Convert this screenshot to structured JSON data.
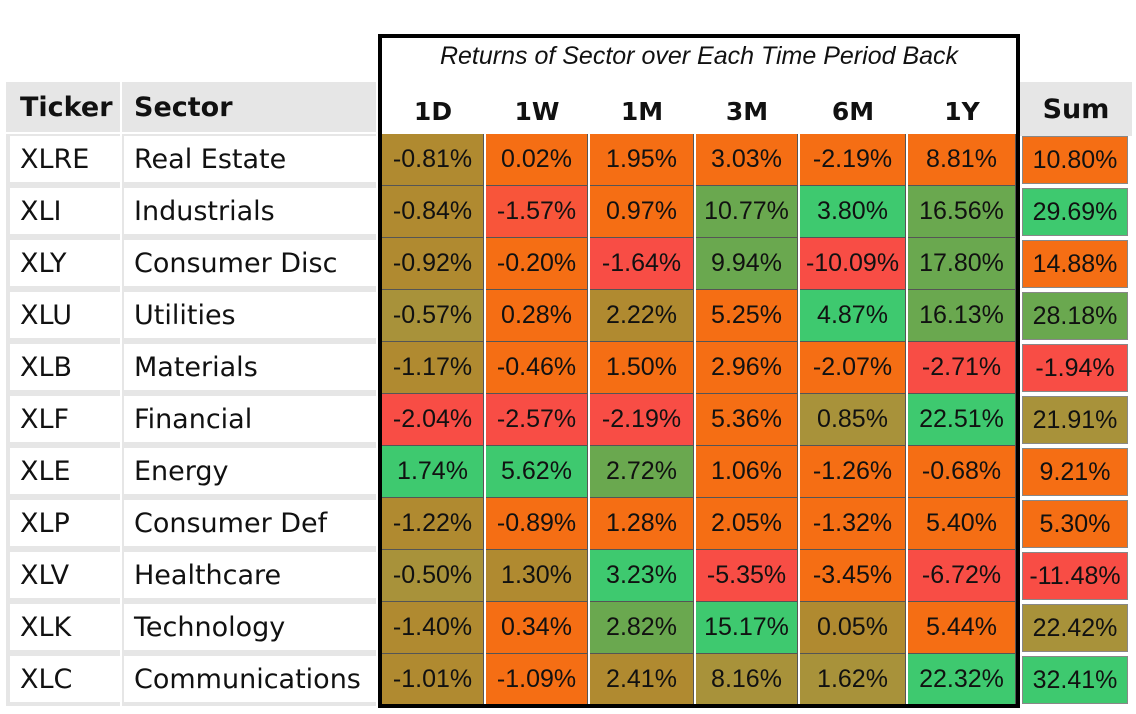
{
  "chart_data": {
    "type": "heatmap",
    "title": "Returns of Sector over Each Time Period Back",
    "ticker_header": "Ticker",
    "sector_header": "Sector",
    "sum_header": "Sum",
    "periods": [
      "1D",
      "1W",
      "1M",
      "3M",
      "6M",
      "1Y"
    ],
    "rows": [
      {
        "ticker": "XLRE",
        "sector": "Real Estate",
        "values": [
          "-0.81%",
          "0.02%",
          "1.95%",
          "3.03%",
          "-2.19%",
          "8.81%"
        ],
        "sum": "10.80%"
      },
      {
        "ticker": "XLI",
        "sector": "Industrials",
        "values": [
          "-0.84%",
          "-1.57%",
          "0.97%",
          "10.77%",
          "3.80%",
          "16.56%"
        ],
        "sum": "29.69%"
      },
      {
        "ticker": "XLY",
        "sector": "Consumer Disc",
        "values": [
          "-0.92%",
          "-0.20%",
          "-1.64%",
          "9.94%",
          "-10.09%",
          "17.80%"
        ],
        "sum": "14.88%"
      },
      {
        "ticker": "XLU",
        "sector": "Utilities",
        "values": [
          "-0.57%",
          "0.28%",
          "2.22%",
          "5.25%",
          "4.87%",
          "16.13%"
        ],
        "sum": "28.18%"
      },
      {
        "ticker": "XLB",
        "sector": "Materials",
        "values": [
          "-1.17%",
          "-0.46%",
          "1.50%",
          "2.96%",
          "-2.07%",
          "-2.71%"
        ],
        "sum": "-1.94%"
      },
      {
        "ticker": "XLF",
        "sector": "Financial",
        "values": [
          "-2.04%",
          "-2.57%",
          "-2.19%",
          "5.36%",
          "0.85%",
          "22.51%"
        ],
        "sum": "21.91%"
      },
      {
        "ticker": "XLE",
        "sector": "Energy",
        "values": [
          "1.74%",
          "5.62%",
          "2.72%",
          "1.06%",
          "-1.26%",
          "-0.68%"
        ],
        "sum": "9.21%"
      },
      {
        "ticker": "XLP",
        "sector": "Consumer Def",
        "values": [
          "-1.22%",
          "-0.89%",
          "1.28%",
          "2.05%",
          "-1.32%",
          "5.40%"
        ],
        "sum": "5.30%"
      },
      {
        "ticker": "XLV",
        "sector": "Healthcare",
        "values": [
          "-0.50%",
          "1.30%",
          "3.23%",
          "-5.35%",
          "-3.45%",
          "-6.72%"
        ],
        "sum": "-11.48%"
      },
      {
        "ticker": "XLK",
        "sector": "Technology",
        "values": [
          "-1.40%",
          "0.34%",
          "2.82%",
          "15.17%",
          "0.05%",
          "5.44%"
        ],
        "sum": "22.42%"
      },
      {
        "ticker": "XLC",
        "sector": "Communications",
        "values": [
          "-1.01%",
          "-1.09%",
          "2.41%",
          "8.16%",
          "1.62%",
          "22.32%"
        ],
        "sum": "32.41%"
      }
    ],
    "cell_colors": [
      [
        "#b08a30",
        "#f56e14",
        "#f56e14",
        "#f56e14",
        "#f56e14",
        "#f56e14"
      ],
      [
        "#b08a30",
        "#f8553a",
        "#f56e14",
        "#6aa84f",
        "#3ec96f",
        "#6aa84f"
      ],
      [
        "#b08a30",
        "#f56e14",
        "#f84d45",
        "#6aa84f",
        "#f84d45",
        "#6aa84f"
      ],
      [
        "#a8923a",
        "#f56e14",
        "#b08a30",
        "#f56e14",
        "#3ec96f",
        "#6aa84f"
      ],
      [
        "#b08a30",
        "#f56e14",
        "#f56e14",
        "#f56e14",
        "#f56e14",
        "#f84d45"
      ],
      [
        "#f84d45",
        "#f84d45",
        "#f84d45",
        "#f56e14",
        "#a8923a",
        "#3ec96f"
      ],
      [
        "#3ec96f",
        "#3ec96f",
        "#6aa84f",
        "#f56e14",
        "#f56e14",
        "#f56e14"
      ],
      [
        "#b08a30",
        "#f56e14",
        "#f56e14",
        "#f56e14",
        "#f56e14",
        "#f56e14"
      ],
      [
        "#a8923a",
        "#b08a30",
        "#3ec96f",
        "#f84d45",
        "#f56e14",
        "#f84d45"
      ],
      [
        "#b08a30",
        "#f56e14",
        "#6aa84f",
        "#3ec96f",
        "#b08a30",
        "#f56e14"
      ],
      [
        "#b08a30",
        "#f56e14",
        "#b08a30",
        "#a8923a",
        "#a8923a",
        "#3ec96f"
      ]
    ],
    "sum_colors": [
      "#f56e14",
      "#3ec96f",
      "#f56e14",
      "#6aa84f",
      "#f84d45",
      "#a8923a",
      "#f56e14",
      "#f56e14",
      "#f84d45",
      "#a8923a",
      "#3ec96f"
    ]
  }
}
